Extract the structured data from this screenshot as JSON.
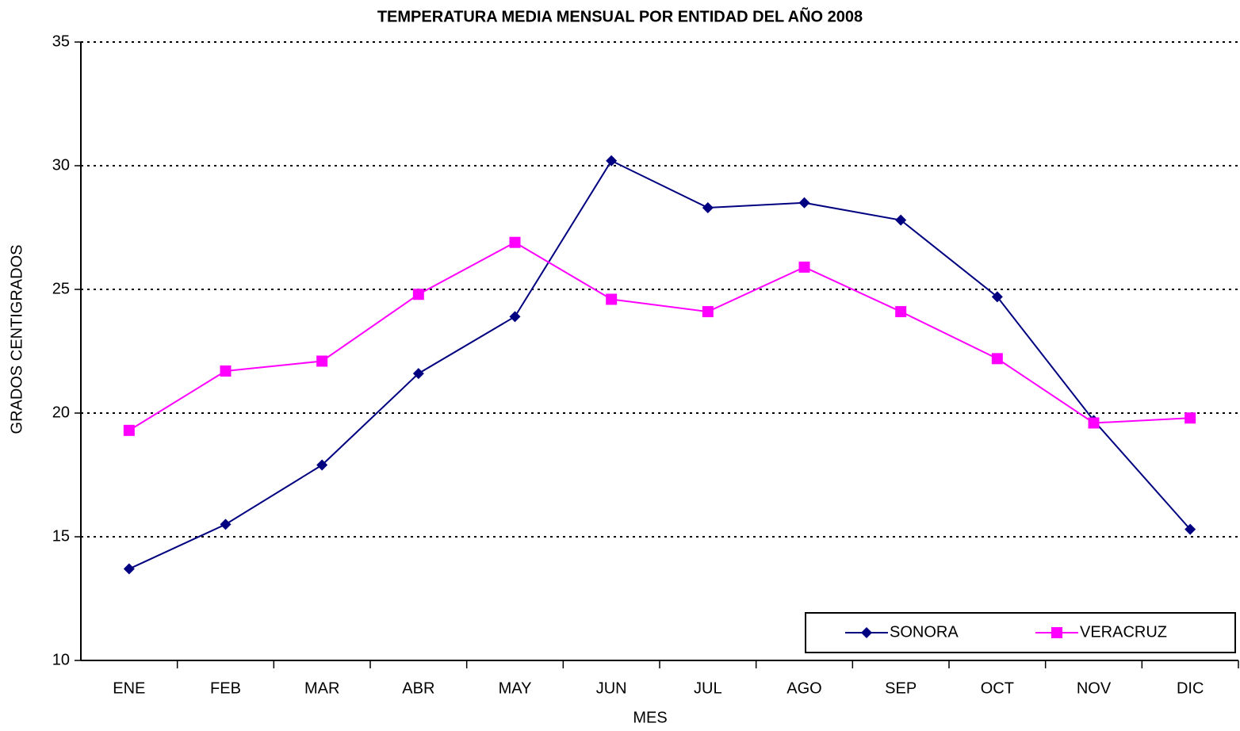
{
  "chart_data": {
    "type": "line",
    "title": "TEMPERATURA MEDIA MENSUAL POR ENTIDAD DEL AÑO 2008",
    "x_label": "MES",
    "y_label": "GRADOS CENTIGRADOS",
    "categories": [
      "ENE",
      "FEB",
      "MAR",
      "ABR",
      "MAY",
      "JUN",
      "JUL",
      "AGO",
      "SEP",
      "OCT",
      "NOV",
      "DIC"
    ],
    "series": [
      {
        "name": "SONORA",
        "color": "#000080",
        "values": [
          13.7,
          15.5,
          17.9,
          21.6,
          23.9,
          30.2,
          28.3,
          28.5,
          27.8,
          24.7,
          19.7,
          15.3
        ]
      },
      {
        "name": "VERACRUZ",
        "color": "#ff00ff",
        "values": [
          19.3,
          21.7,
          22.1,
          24.8,
          26.9,
          24.6,
          24.1,
          25.9,
          24.1,
          22.2,
          19.6,
          19.8
        ]
      }
    ],
    "ylim": [
      10,
      35
    ],
    "yticks": [
      10,
      15,
      20,
      25,
      30,
      35
    ],
    "grid": true,
    "legend": "lower right"
  }
}
